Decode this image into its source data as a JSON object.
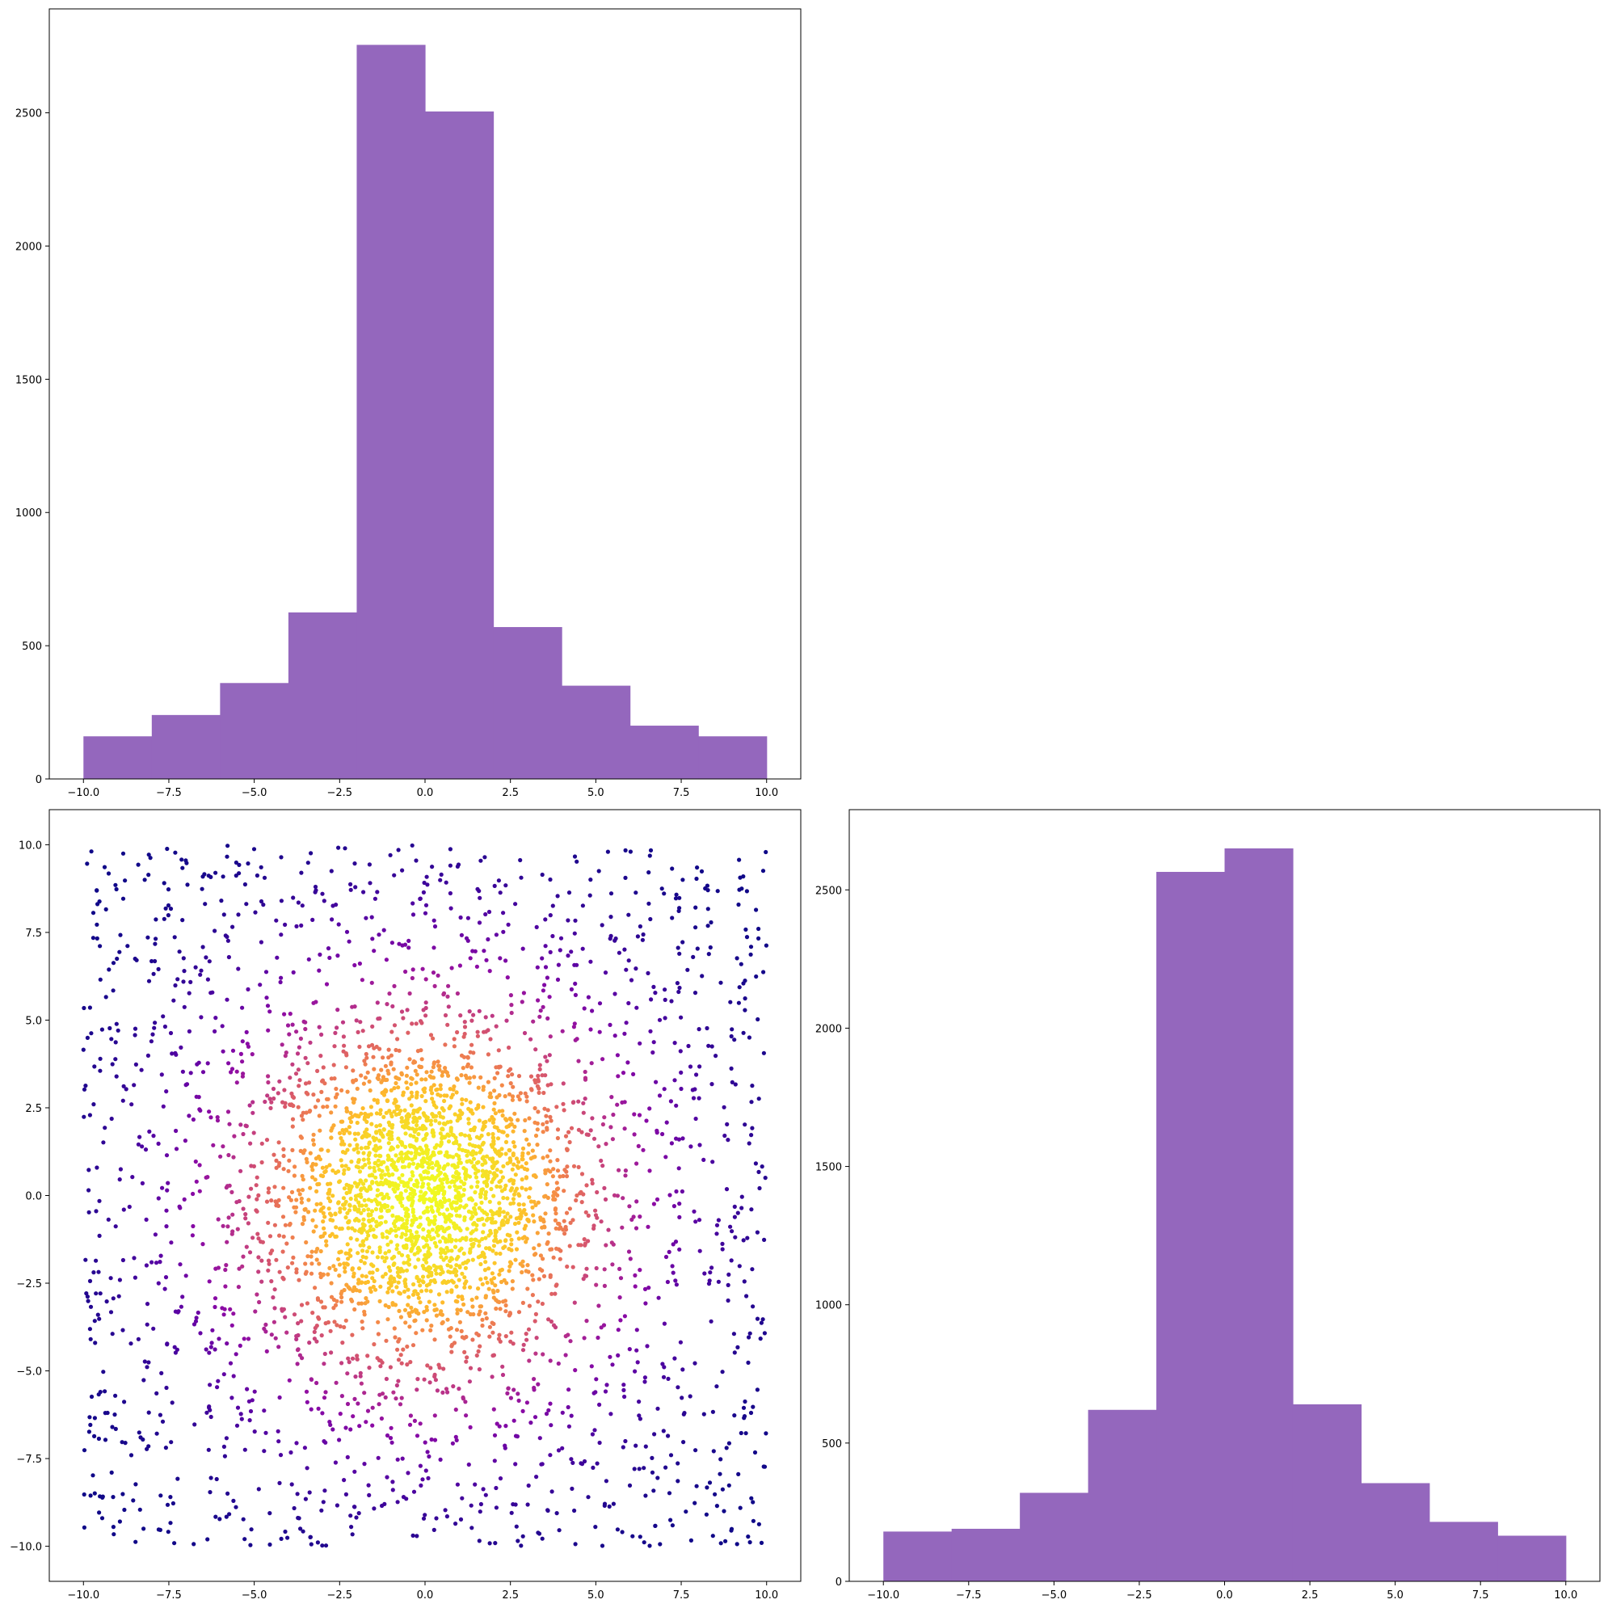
{
  "chart_data": [
    {
      "type": "bar",
      "subtype": "histogram",
      "position": "top-left",
      "bin_edges": [
        -10,
        -8,
        -6,
        -4,
        -2,
        0,
        2,
        4,
        6,
        8,
        10
      ],
      "values": [
        160,
        240,
        360,
        625,
        2755,
        2505,
        570,
        350,
        200,
        160
      ],
      "xlim": [
        -11,
        11
      ],
      "ylim": [
        0,
        2890
      ],
      "xticks": [
        -10.0,
        -7.5,
        -5.0,
        -2.5,
        0.0,
        2.5,
        5.0,
        7.5,
        10.0
      ],
      "xtick_labels": [
        "−10.0",
        "−7.5",
        "−5.0",
        "−2.5",
        "0.0",
        "2.5",
        "5.0",
        "7.5",
        "10.0"
      ],
      "yticks": [
        0,
        500,
        1000,
        1500,
        2000,
        2500
      ],
      "ytick_labels": [
        "0",
        "500",
        "1000",
        "1500",
        "2000",
        "2500"
      ],
      "color": "#9467bd",
      "title": "",
      "xlabel": "",
      "ylabel": ""
    },
    {
      "type": "scatter",
      "position": "bottom-left",
      "n_points": 4000,
      "distribution": "mixture of central normal cluster (sigma≈2.2) and uniform background over [-10, 10] x [-10, 10]",
      "colormap": "plasma",
      "color_encoding": "point density / proximity to center (dark purple at edges, yellow at center)",
      "color_stops": [
        "#0d0887",
        "#7e03a8",
        "#cc4778",
        "#f89540",
        "#f0f921"
      ],
      "xlim": [
        -11,
        11
      ],
      "ylim": [
        -11,
        11
      ],
      "xticks": [
        -10.0,
        -7.5,
        -5.0,
        -2.5,
        0.0,
        2.5,
        5.0,
        7.5,
        10.0
      ],
      "xtick_labels": [
        "−10.0",
        "−7.5",
        "−5.0",
        "−2.5",
        "0.0",
        "2.5",
        "5.0",
        "7.5",
        "10.0"
      ],
      "yticks": [
        -10.0,
        -7.5,
        -5.0,
        -2.5,
        0.0,
        2.5,
        5.0,
        7.5,
        10.0
      ],
      "ytick_labels": [
        "−10.0",
        "−7.5",
        "−5.0",
        "−2.5",
        "0.0",
        "2.5",
        "5.0",
        "7.5",
        "10.0"
      ],
      "title": "",
      "xlabel": "",
      "ylabel": ""
    },
    {
      "type": "bar",
      "subtype": "histogram",
      "position": "bottom-right",
      "bin_edges": [
        -10,
        -8,
        -6,
        -4,
        -2,
        0,
        2,
        4,
        6,
        8,
        10
      ],
      "values": [
        180,
        190,
        320,
        620,
        2565,
        2650,
        640,
        355,
        215,
        165
      ],
      "xlim": [
        -11,
        11
      ],
      "ylim": [
        0,
        2790
      ],
      "xticks": [
        -10.0,
        -7.5,
        -5.0,
        -2.5,
        0.0,
        2.5,
        5.0,
        7.5,
        10.0
      ],
      "xtick_labels": [
        "−10.0",
        "−7.5",
        "−5.0",
        "−2.5",
        "0.0",
        "2.5",
        "5.0",
        "7.5",
        "10.0"
      ],
      "yticks": [
        0,
        500,
        1000,
        1500,
        2000,
        2500
      ],
      "ytick_labels": [
        "0",
        "500",
        "1000",
        "1500",
        "2000",
        "2500"
      ],
      "color": "#9467bd",
      "title": "",
      "xlabel": "",
      "ylabel": ""
    }
  ]
}
